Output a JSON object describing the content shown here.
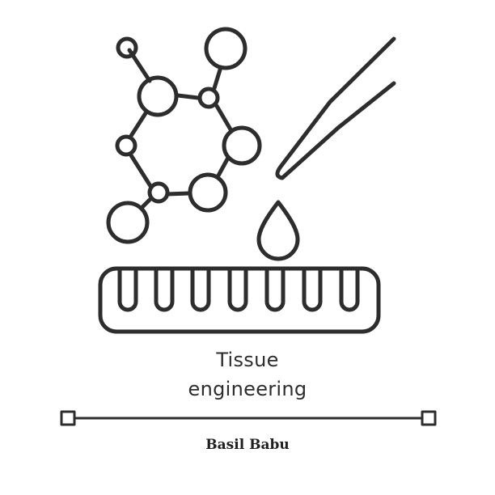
{
  "icon": {
    "name": "tissue-engineering-line-icon",
    "stroke_color": "#2d2d2d"
  },
  "caption": {
    "line1": "Tissue",
    "line2": "engineering"
  },
  "author": "Basil Babu"
}
